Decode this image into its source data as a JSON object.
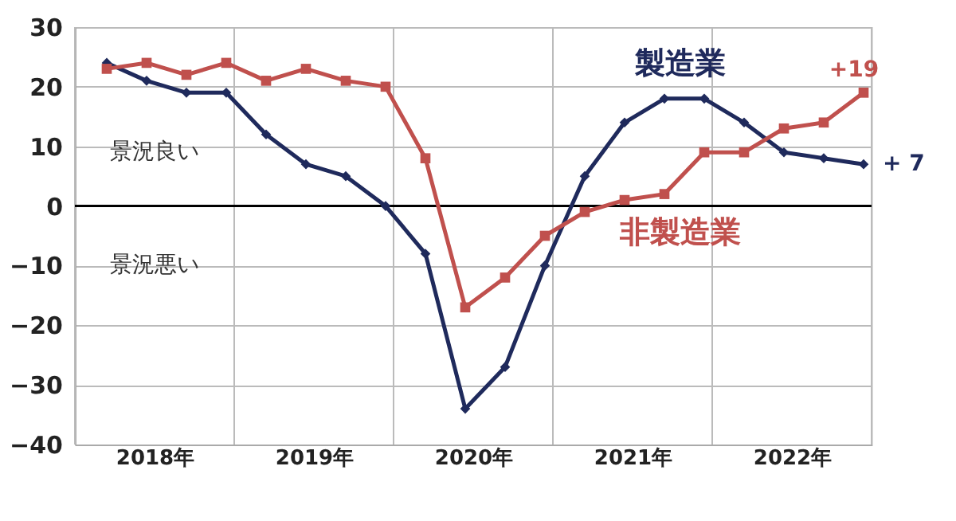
{
  "chart_data": {
    "type": "line",
    "x": [
      2018.2,
      2018.45,
      2018.7,
      2018.95,
      2019.2,
      2019.45,
      2019.7,
      2019.95,
      2020.2,
      2020.45,
      2020.7,
      2020.95,
      2021.2,
      2021.45,
      2021.7,
      2021.95,
      2022.2,
      2022.45,
      2022.7,
      2022.95
    ],
    "series": [
      {
        "name": "製造業",
        "color": "#1f2a5c",
        "marker": "diamond",
        "values": [
          24,
          21,
          19,
          19,
          12,
          7,
          5,
          0,
          -8,
          -34,
          -27,
          -10,
          5,
          14,
          18,
          18,
          14,
          9,
          8,
          7
        ],
        "value_labels": [
          null,
          null,
          null,
          null,
          null,
          null,
          null,
          null,
          null,
          null,
          null,
          null,
          null,
          null,
          null,
          null,
          null,
          null,
          null,
          "+ 7"
        ]
      },
      {
        "name": "非製造業",
        "color": "#c0504d",
        "marker": "square",
        "values": [
          23,
          24,
          22,
          24,
          21,
          23,
          21,
          20,
          8,
          -17,
          -12,
          -5,
          -1,
          1,
          2,
          9,
          9,
          13,
          14,
          19
        ],
        "value_labels": [
          null,
          null,
          null,
          null,
          null,
          null,
          null,
          null,
          null,
          null,
          null,
          null,
          null,
          null,
          null,
          null,
          null,
          null,
          null,
          "+19"
        ]
      }
    ],
    "xlim": [
      2018,
      2023
    ],
    "xticks": [
      {
        "value": 2018.5,
        "label": "2018年"
      },
      {
        "value": 2019,
        "label": null
      },
      {
        "value": 2019.5,
        "label": "2019年"
      },
      {
        "value": 2020,
        "label": null
      },
      {
        "value": 2020.5,
        "label": "2020年"
      },
      {
        "value": 2021,
        "label": null
      },
      {
        "value": 2021.5,
        "label": "2021年"
      },
      {
        "value": 2022,
        "label": null
      },
      {
        "value": 2022.5,
        "label": "2022年"
      }
    ],
    "ylim": [
      -40,
      30
    ],
    "yticks": [
      -40,
      -30,
      -20,
      -10,
      0,
      10,
      20,
      30
    ],
    "grid": true,
    "legend": false,
    "ref_lines": [
      {
        "axis": "y",
        "value": 0,
        "color": "#000000"
      }
    ],
    "annotations": [
      "景況良い",
      "景況悪い"
    ]
  }
}
